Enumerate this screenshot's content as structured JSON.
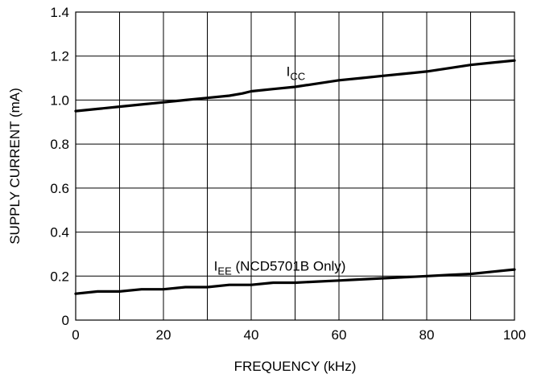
{
  "chart_data": {
    "type": "line",
    "title": "",
    "xlabel": "FREQUENCY (kHz)",
    "ylabel": "SUPPLY CURRENT (mA)",
    "xlim": [
      0,
      100
    ],
    "ylim": [
      0,
      1.4
    ],
    "grid": true,
    "x_ticks": [
      0,
      10,
      20,
      30,
      40,
      50,
      60,
      70,
      80,
      90,
      100
    ],
    "y_ticks": [
      0,
      0.2,
      0.4,
      0.6,
      0.8,
      1.0,
      1.2,
      1.4
    ],
    "x_tick_labels": [
      "0",
      "20",
      "40",
      "60",
      "80",
      "100"
    ],
    "x_tick_label_values": [
      0,
      20,
      40,
      60,
      80,
      100
    ],
    "y_tick_labels": [
      "0",
      "0.2",
      "0.4",
      "0.6",
      "0.8",
      "1.0",
      "1.2",
      "1.4"
    ],
    "y_tick_label_values": [
      0,
      0.2,
      0.4,
      0.6,
      0.8,
      1.0,
      1.2,
      1.4
    ],
    "line_color": "#000000",
    "series": [
      {
        "name": "I_CC",
        "label_main": "I",
        "label_sub": "CC",
        "label_suffix": "",
        "label_at": [
          48,
          1.11
        ],
        "x": [
          0,
          5,
          10,
          15,
          20,
          25,
          30,
          35,
          38,
          40,
          45,
          50,
          55,
          60,
          65,
          70,
          75,
          80,
          85,
          90,
          95,
          100
        ],
        "y": [
          0.95,
          0.96,
          0.97,
          0.98,
          0.99,
          1.0,
          1.01,
          1.02,
          1.03,
          1.04,
          1.05,
          1.06,
          1.075,
          1.09,
          1.1,
          1.11,
          1.12,
          1.13,
          1.145,
          1.16,
          1.17,
          1.18
        ]
      },
      {
        "name": "I_EE (NCD5701B Only)",
        "label_main": "I",
        "label_sub": "EE",
        "label_suffix": " (NCD5701B Only)",
        "label_at": [
          31.5,
          0.225
        ],
        "x": [
          0,
          5,
          10,
          15,
          20,
          25,
          30,
          35,
          40,
          45,
          50,
          55,
          60,
          65,
          70,
          75,
          80,
          85,
          90,
          95,
          100
        ],
        "y": [
          0.12,
          0.13,
          0.13,
          0.14,
          0.14,
          0.15,
          0.15,
          0.16,
          0.16,
          0.17,
          0.17,
          0.175,
          0.18,
          0.185,
          0.19,
          0.195,
          0.2,
          0.205,
          0.21,
          0.22,
          0.23
        ]
      }
    ]
  }
}
